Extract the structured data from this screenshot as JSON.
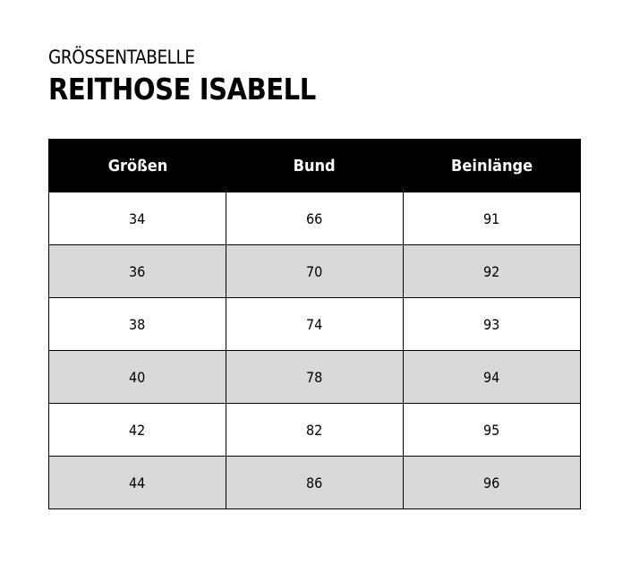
{
  "subtitle": "GRÖSSENTABELLE",
  "title": "REITHOSE ISABELL",
  "table": {
    "headers": [
      "Größen",
      "Bund",
      "Beinlänge"
    ],
    "rows": [
      [
        "34",
        "66",
        "91"
      ],
      [
        "36",
        "70",
        "92"
      ],
      [
        "38",
        "74",
        "93"
      ],
      [
        "40",
        "78",
        "94"
      ],
      [
        "42",
        "82",
        "95"
      ],
      [
        "44",
        "86",
        "96"
      ]
    ]
  },
  "colors": {
    "header_bg": "#000000",
    "stripe_bg": "#d9d9d9"
  }
}
